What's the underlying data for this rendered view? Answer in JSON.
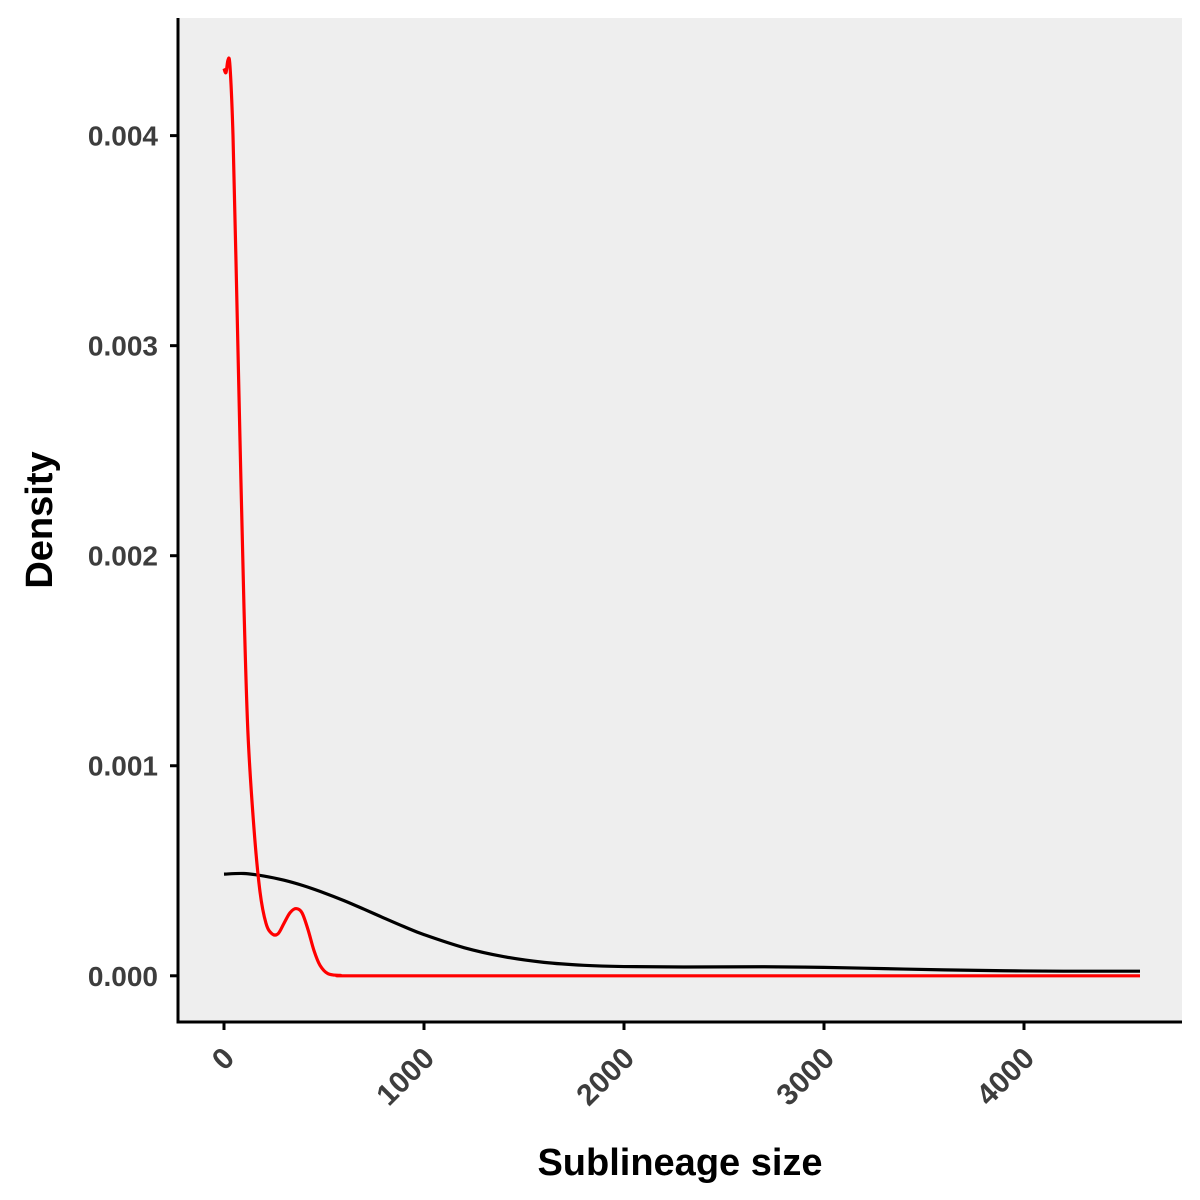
{
  "chart_data": {
    "type": "line",
    "title": "",
    "xlabel": "Sublineage size",
    "ylabel": "Density",
    "xlim": [
      -230,
      4790
    ],
    "ylim": [
      -0.00022,
      0.00456
    ],
    "x_ticks": [
      0,
      1000,
      2000,
      3000,
      4000
    ],
    "x_tick_labels": [
      "0",
      "1000",
      "2000",
      "3000",
      "4000"
    ],
    "y_ticks": [
      0,
      0.001,
      0.002,
      0.003,
      0.004
    ],
    "y_tick_labels": [
      "0.000",
      "0.001",
      "0.002",
      "0.003",
      "0.004"
    ],
    "grid": false,
    "legend": "none",
    "background_color": "#eeeeee",
    "series": [
      {
        "color": "#000000",
        "points": [
          [
            0,
            0.000484
          ],
          [
            100,
            0.000487
          ],
          [
            200,
            0.000475
          ],
          [
            300,
            0.000455
          ],
          [
            400,
            0.000428
          ],
          [
            500,
            0.000395
          ],
          [
            600,
            0.000358
          ],
          [
            700,
            0.000317
          ],
          [
            800,
            0.000275
          ],
          [
            900,
            0.000234
          ],
          [
            1000,
            0.000196
          ],
          [
            1200,
            0.000134
          ],
          [
            1400,
            9.1e-05
          ],
          [
            1600,
            6.4e-05
          ],
          [
            1800,
            5e-05
          ],
          [
            2000,
            4.4e-05
          ],
          [
            2300,
            4.2e-05
          ],
          [
            2700,
            4.3e-05
          ],
          [
            3000,
            4e-05
          ],
          [
            3300,
            3.4e-05
          ],
          [
            3600,
            2.8e-05
          ],
          [
            3900,
            2.4e-05
          ],
          [
            4200,
            2.2e-05
          ],
          [
            4580,
            2.2e-05
          ]
        ]
      },
      {
        "color": "#ff0000",
        "points": [
          [
            0,
            0.00432
          ],
          [
            10,
            0.0043
          ],
          [
            20,
            0.00436
          ],
          [
            30,
            0.00433
          ],
          [
            45,
            0.004
          ],
          [
            60,
            0.0034
          ],
          [
            80,
            0.00255
          ],
          [
            100,
            0.00175
          ],
          [
            120,
            0.00115
          ],
          [
            150,
            0.0007
          ],
          [
            180,
            0.0004
          ],
          [
            210,
            0.00025
          ],
          [
            240,
            0.0002
          ],
          [
            270,
            0.0002
          ],
          [
            300,
            0.00025
          ],
          [
            330,
            0.0003
          ],
          [
            360,
            0.00032
          ],
          [
            390,
            0.0003
          ],
          [
            420,
            0.00022
          ],
          [
            450,
            0.00012
          ],
          [
            480,
            5e-05
          ],
          [
            520,
            1e-05
          ],
          [
            580,
            2e-06
          ],
          [
            700,
            0.0
          ],
          [
            2000,
            0.0
          ],
          [
            4580,
            0.0
          ]
        ]
      }
    ]
  }
}
